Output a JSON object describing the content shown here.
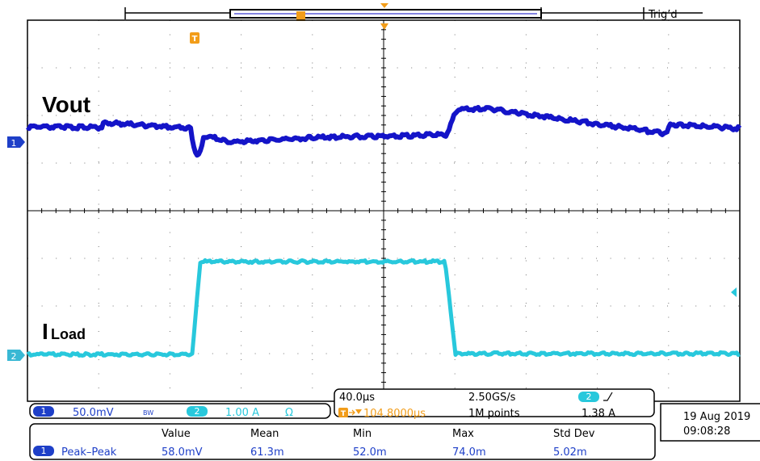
{
  "header": {
    "trigger_status": "Trig’d"
  },
  "waveforms": {
    "ch1_label": "Vout",
    "ch2_label_main": "I",
    "ch2_label_sub": "Load",
    "ch1_color": "#1414c8",
    "ch2_color": "#28c8dc"
  },
  "markers": {
    "trigger_marker": "T",
    "ch1_marker": "1",
    "ch2_marker": "2"
  },
  "timebase": {
    "horizontal_scale": "40.0µs",
    "sample_rate": "2.50GS/s",
    "trigger_channel": "2",
    "trigger_delay": "104.8000µs",
    "record_length": "1M points",
    "trigger_level": "1.38 A"
  },
  "channels": {
    "ch1": {
      "number": "1",
      "scale": "50.0mV",
      "bandwidth": "BW"
    },
    "ch2": {
      "number": "2",
      "scale": "1.00 A",
      "coupling": "Ω"
    }
  },
  "datetime": {
    "date": "19 Aug 2019",
    "time": "09:08:28"
  },
  "measurements": {
    "headers": [
      "Value",
      "Mean",
      "Min",
      "Max",
      "Std Dev"
    ],
    "rows": [
      {
        "channel": "1",
        "name": "Peak–Peak",
        "values": [
          "58.0mV",
          "61.3m",
          "52.0m",
          "74.0m",
          "5.02m"
        ]
      }
    ]
  }
}
